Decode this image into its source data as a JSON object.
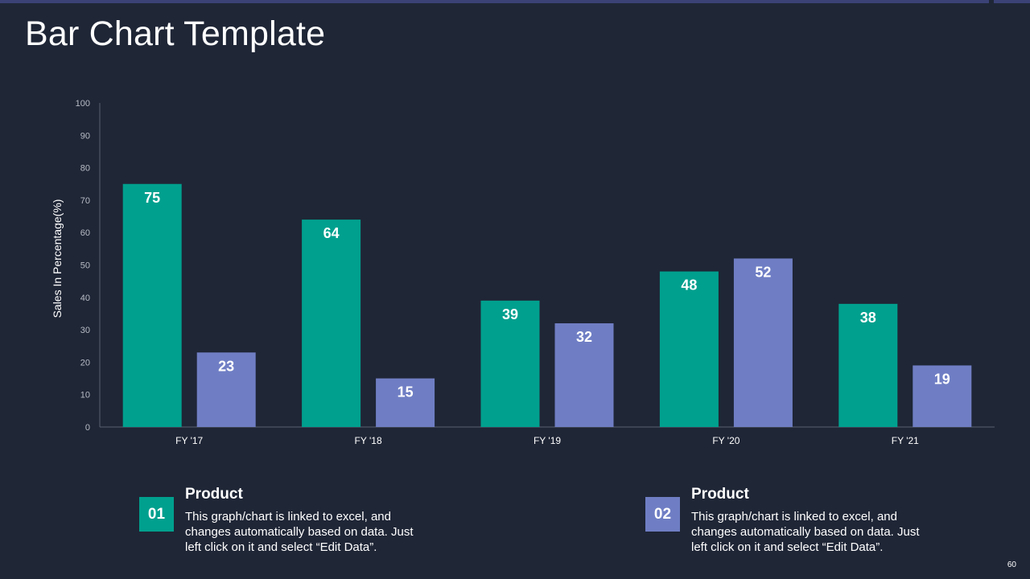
{
  "slide": {
    "title": "Bar Chart Template",
    "page_number": "60"
  },
  "colors": {
    "series1": "#00a08e",
    "series2": "#6f7ec4",
    "background": "#1f2636",
    "axis": "#5a6070",
    "tick_text": "#b8bcc6"
  },
  "chart_data": {
    "type": "bar",
    "title": "",
    "xlabel": "",
    "ylabel": "Sales In Percentage(%)",
    "ylim": [
      0,
      100
    ],
    "yticks": [
      0,
      10,
      20,
      30,
      40,
      50,
      60,
      70,
      80,
      90,
      100
    ],
    "categories": [
      "FY '17",
      "FY '18",
      "FY '19",
      "FY '20",
      "FY '21"
    ],
    "series": [
      {
        "name": "Product 01",
        "values": [
          75,
          64,
          39,
          48,
          38
        ]
      },
      {
        "name": "Product 02",
        "values": [
          23,
          15,
          32,
          52,
          19
        ]
      }
    ],
    "grid": false
  },
  "legend": [
    {
      "number": "01",
      "title": "Product",
      "description": "This graph/chart  is linked to excel, and changes automatically based on data. Just left click on it and select “Edit Data”."
    },
    {
      "number": "02",
      "title": "Product",
      "description": "This graph/chart  is linked to excel, and changes automatically based on data. Just left click on it and select “Edit Data”."
    }
  ]
}
